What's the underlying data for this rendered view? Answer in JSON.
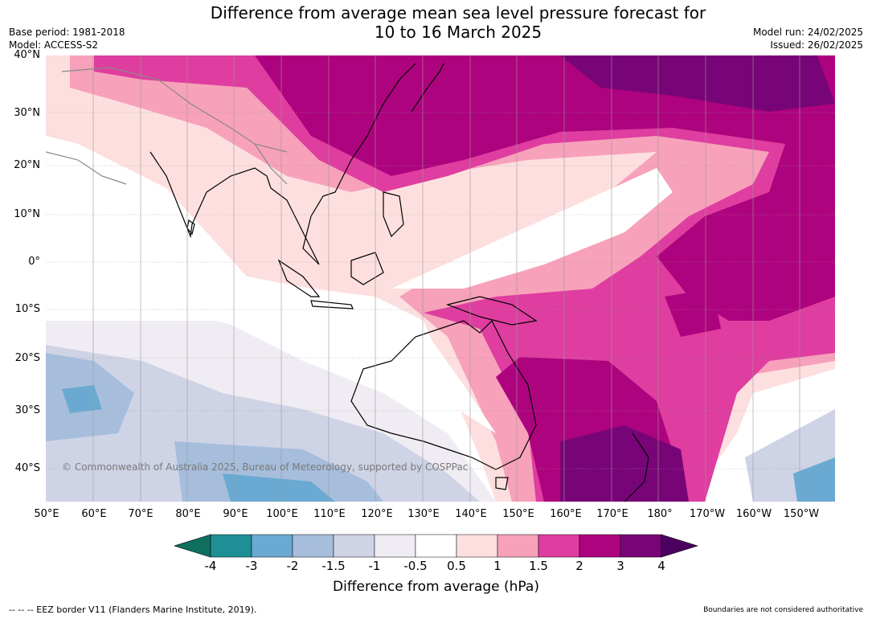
{
  "title": {
    "line1": "Difference from average mean sea level pressure forecast for",
    "line2": "10 to 16 March 2025"
  },
  "meta": {
    "base_period": "Base period: 1981-2018",
    "model": "Model: ACCESS-S2",
    "model_run": "Model run: 24/02/2025",
    "issued": "Issued: 26/02/2025"
  },
  "map": {
    "lat_labels": [
      "40°N",
      "30°N",
      "20°N",
      "10°N",
      "0°",
      "10°S",
      "20°S",
      "30°S",
      "40°S"
    ],
    "lon_labels": [
      "50°E",
      "60°E",
      "70°E",
      "80°E",
      "90°E",
      "100°E",
      "110°E",
      "120°E",
      "130°E",
      "140°E",
      "150°E",
      "160°E",
      "170°E",
      "180°",
      "170°W",
      "160°W",
      "150°W"
    ],
    "copyright": "© Commonwealth of Australia 2025, Bureau of Meteorology, supported by COSPPac"
  },
  "legend": {
    "title": "Difference from average (hPa)",
    "ticks": [
      "-4",
      "-3",
      "-2",
      "-1.5",
      "-1",
      "-0.5",
      "0.5",
      "1",
      "1.5",
      "2",
      "3",
      "4"
    ],
    "colors": [
      "#1e8f94",
      "#6aaad2",
      "#a6bedc",
      "#cfd3e6",
      "#f0ecf3",
      "#ffffff",
      "#fddfdf",
      "#f7a1bb",
      "#df3d9f",
      "#ae037e",
      "#780577"
    ],
    "under_color": "#0f7060",
    "over_color": "#4b0060"
  },
  "footer": {
    "eez_note": "--  --  -- EEZ border V11 (Flanders Marine Institute, 2019).",
    "boundaries_note": "Boundaries are not considered authoritative"
  }
}
